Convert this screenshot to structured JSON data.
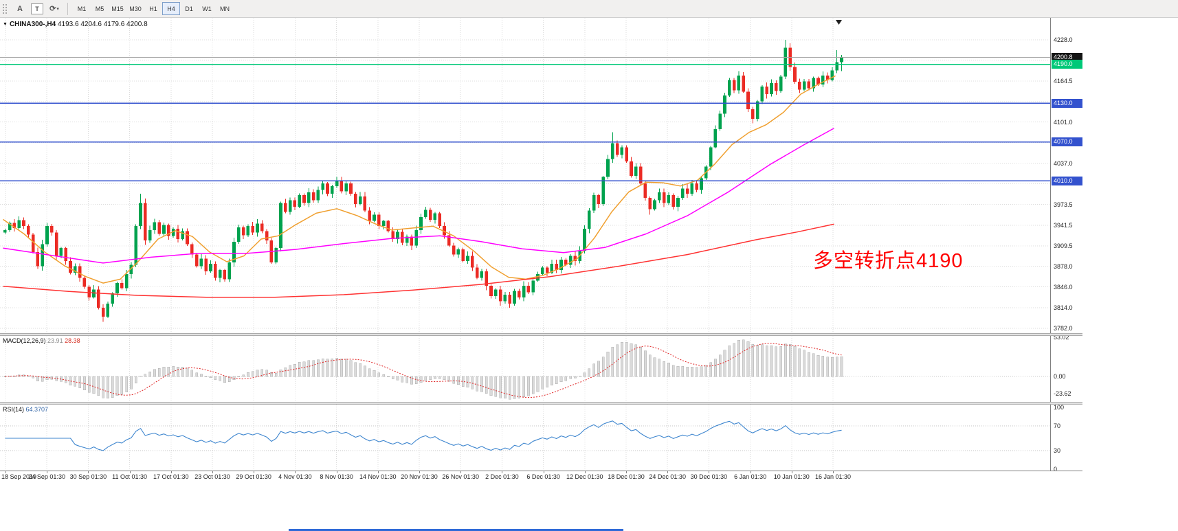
{
  "toolbar": {
    "icons": [
      {
        "name": "toolbar-grip",
        "glyph": ""
      },
      {
        "name": "text-tool",
        "glyph": "A"
      },
      {
        "name": "label-tool",
        "glyph": "T",
        "boxed": true
      },
      {
        "name": "cycle-tool",
        "glyph": "⟳",
        "dropdown": true
      }
    ],
    "timeframes": [
      "M1",
      "M5",
      "M15",
      "M30",
      "H1",
      "H4",
      "D1",
      "W1",
      "MN"
    ],
    "active_timeframe": "H4"
  },
  "chart": {
    "symbol_title": "CHINA300-,H4",
    "ohlc_text": "4193.6 4204.6 4179.6 4200.8",
    "annotation": {
      "text": "多空转折点4190",
      "color": "#FF0000"
    },
    "badges": [
      {
        "text": "4200.8",
        "price": 4200.8,
        "color": "#151515"
      },
      {
        "text": "4190.0",
        "price": 4190.0,
        "color": "#00C878"
      },
      {
        "text": "4130.0",
        "price": 4130.0,
        "color": "#3352CE"
      },
      {
        "text": "4070.0",
        "price": 4070.0,
        "color": "#3352CE"
      },
      {
        "text": "4010.0",
        "price": 4010.0,
        "color": "#3352CE"
      }
    ]
  },
  "indicators": {
    "macd": {
      "name": "MACD(12,26,9)",
      "v1": "23.91",
      "v2": "28.38",
      "axis": [
        "53.02",
        "0.00",
        "-23.62"
      ],
      "axis_values": [
        53.02,
        0,
        -23.62
      ]
    },
    "rsi": {
      "name": "RSI(14)",
      "value": "64.3707",
      "axis": [
        "100",
        "70",
        "30",
        "0"
      ],
      "axis_values": [
        100,
        70,
        30,
        0
      ],
      "levels": [
        70,
        30
      ]
    }
  },
  "colors": {
    "up": "#00A24E",
    "down": "#EB2B24",
    "ma_fast": "#F0A030",
    "ma_mid": "#FF00FF",
    "ma_slow": "#FF3232",
    "grid": "#DCDCDC",
    "last_price_line": "#A6A6A6",
    "macd_hist_fill": "#DADADA",
    "macd_hist_stroke": "#ADADAD",
    "macd_signal": "#E02424",
    "rsi_line": "#3E86CF"
  },
  "chart_data": {
    "type": "candlestick",
    "symbol": "CHINA300-",
    "timeframe": "H4",
    "current_bar": {
      "open": 4193.6,
      "high": 4204.6,
      "low": 4179.6,
      "close": 4200.8
    },
    "price_axis": {
      "min": 3782,
      "max": 4228,
      "gridlines": [
        4228.0,
        4196.5,
        4164.5,
        4132.5,
        4101.0,
        4069.0,
        4037.0,
        4005.6,
        3973.5,
        3941.5,
        3909.5,
        3878.0,
        3846.0,
        3814.0,
        3782.0
      ]
    },
    "horizontal_levels": [
      {
        "price": 4190.0,
        "color": "#00C878",
        "width": 1.8
      },
      {
        "price": 4130.0,
        "color": "#3352CE",
        "width": 1.4
      },
      {
        "price": 4070.0,
        "color": "#3352CE",
        "width": 1.4
      },
      {
        "price": 4010.0,
        "color": "#3352CE",
        "width": 1.4
      }
    ],
    "last_price": 4200.8,
    "time_labels": [
      "18 Sep 2019",
      "24 Sep 01:30",
      "30 Sep 01:30",
      "11 Oct 01:30",
      "17 Oct 01:30",
      "23 Oct 01:30",
      "29 Oct 01:30",
      "4 Nov 01:30",
      "8 Nov 01:30",
      "14 Nov 01:30",
      "20 Nov 01:30",
      "26 Nov 01:30",
      "2 Dec 01:30",
      "6 Dec 01:30",
      "12 Dec 01:30",
      "18 Dec 01:30",
      "24 Dec 01:30",
      "30 Dec 01:30",
      "6 Jan 01:30",
      "10 Jan 01:30",
      "16 Jan 01:30"
    ],
    "closes": [
      3934,
      3945,
      3937,
      3949,
      3940,
      3927,
      3900,
      3878,
      3912,
      3940,
      3930,
      3894,
      3906,
      3886,
      3868,
      3878,
      3860,
      3846,
      3830,
      3842,
      3814,
      3800,
      3820,
      3836,
      3852,
      3844,
      3866,
      3880,
      3940,
      3976,
      3918,
      3934,
      3946,
      3928,
      3942,
      3925,
      3936,
      3920,
      3932,
      3912,
      3896,
      3878,
      3890,
      3870,
      3882,
      3860,
      3872,
      3858,
      3884,
      3916,
      3938,
      3926,
      3940,
      3930,
      3944,
      3932,
      3918,
      3884,
      3906,
      3976,
      3962,
      3980,
      3970,
      3988,
      3976,
      3992,
      3980,
      3996,
      4006,
      3990,
      4002,
      4010,
      3994,
      4006,
      3990,
      3974,
      3986,
      3964,
      3948,
      3958,
      3940,
      3948,
      3932,
      3920,
      3931,
      3914,
      3924,
      3910,
      3934,
      3954,
      3965,
      3950,
      3960,
      3940,
      3926,
      3910,
      3896,
      3904,
      3886,
      3894,
      3876,
      3860,
      3870,
      3848,
      3832,
      3842,
      3824,
      3834,
      3820,
      3840,
      3830,
      3848,
      3838,
      3856,
      3866,
      3876,
      3868,
      3882,
      3872,
      3888,
      3880,
      3894,
      3886,
      3902,
      3936,
      3964,
      3988,
      3974,
      4016,
      4044,
      4068,
      4050,
      4062,
      4040,
      4018,
      4032,
      4006,
      3984,
      3966,
      3980,
      3992,
      3976,
      3988,
      3970,
      3984,
      3998,
      3990,
      4006,
      3996,
      4014,
      4032,
      4062,
      4090,
      4114,
      4142,
      4166,
      4150,
      4173,
      4148,
      4121,
      4106,
      4133,
      4156,
      4144,
      4161,
      4149,
      4171,
      4216,
      4186,
      4163,
      4151,
      4164,
      4153,
      4169,
      4159,
      4173,
      4166,
      4181,
      4193.6,
      4200.8
    ],
    "wick_overrides": {
      "21": {
        "low": 3792
      },
      "29": {
        "high": 3990
      },
      "71": {
        "high": 4016
      },
      "130": {
        "high": 4085
      },
      "138": {
        "low": 3958
      },
      "167": {
        "high": 4228
      },
      "178": {
        "high": 4212
      },
      "179": {
        "high": 4204.6,
        "low": 4179.6
      }
    },
    "moving_averages": [
      {
        "name": "ma-fast-orange",
        "color": "#F0A030",
        "points": [
          [
            5,
            3950
          ],
          [
            35,
            3928
          ],
          [
            65,
            3900
          ],
          [
            95,
            3878
          ],
          [
            125,
            3862
          ],
          [
            150,
            3852
          ],
          [
            175,
            3858
          ],
          [
            200,
            3884
          ],
          [
            230,
            3920
          ],
          [
            255,
            3933
          ],
          [
            280,
            3924
          ],
          [
            305,
            3900
          ],
          [
            330,
            3885
          ],
          [
            355,
            3894
          ],
          [
            380,
            3920
          ],
          [
            405,
            3925
          ],
          [
            430,
            3942
          ],
          [
            460,
            3960
          ],
          [
            490,
            3967
          ],
          [
            520,
            3956
          ],
          [
            545,
            3944
          ],
          [
            570,
            3934
          ],
          [
            600,
            3937
          ],
          [
            630,
            3940
          ],
          [
            660,
            3925
          ],
          [
            690,
            3901
          ],
          [
            715,
            3877
          ],
          [
            740,
            3861
          ],
          [
            765,
            3858
          ],
          [
            790,
            3864
          ],
          [
            815,
            3875
          ],
          [
            840,
            3890
          ],
          [
            865,
            3922
          ],
          [
            890,
            3962
          ],
          [
            915,
            3993
          ],
          [
            940,
            4008
          ],
          [
            965,
            4007
          ],
          [
            990,
            4002
          ],
          [
            1015,
            4011
          ],
          [
            1040,
            4036
          ],
          [
            1065,
            4066
          ],
          [
            1090,
            4085
          ],
          [
            1115,
            4097
          ],
          [
            1140,
            4116
          ],
          [
            1165,
            4144
          ],
          [
            1190,
            4159
          ],
          [
            1215,
            4172
          ]
        ]
      },
      {
        "name": "ma-mid-magenta",
        "color": "#FF00FF",
        "points": [
          [
            5,
            3906
          ],
          [
            80,
            3894
          ],
          [
            150,
            3883
          ],
          [
            220,
            3892
          ],
          [
            290,
            3898
          ],
          [
            360,
            3898
          ],
          [
            430,
            3904
          ],
          [
            500,
            3913
          ],
          [
            570,
            3921
          ],
          [
            640,
            3925
          ],
          [
            700,
            3916
          ],
          [
            760,
            3905
          ],
          [
            820,
            3899
          ],
          [
            880,
            3907
          ],
          [
            940,
            3928
          ],
          [
            1000,
            3956
          ],
          [
            1060,
            3993
          ],
          [
            1120,
            4035
          ],
          [
            1170,
            4066
          ],
          [
            1213,
            4091
          ]
        ]
      },
      {
        "name": "ma-slow-red",
        "color": "#FF3232",
        "points": [
          [
            5,
            3847
          ],
          [
            100,
            3839
          ],
          [
            200,
            3833
          ],
          [
            300,
            3830
          ],
          [
            400,
            3830
          ],
          [
            500,
            3834
          ],
          [
            600,
            3841
          ],
          [
            700,
            3850
          ],
          [
            800,
            3862
          ],
          [
            900,
            3878
          ],
          [
            1000,
            3896
          ],
          [
            1100,
            3919
          ],
          [
            1160,
            3931
          ],
          [
            1213,
            3943
          ]
        ]
      }
    ],
    "macd": {
      "params": "12,26,9",
      "display_main": 23.91,
      "display_signal": 28.38,
      "axis_range": [
        53.02,
        -23.62
      ]
    },
    "rsi": {
      "period": 14,
      "display": 64.3707,
      "axis_range": [
        100,
        0
      ],
      "levels": [
        70,
        30
      ]
    }
  }
}
